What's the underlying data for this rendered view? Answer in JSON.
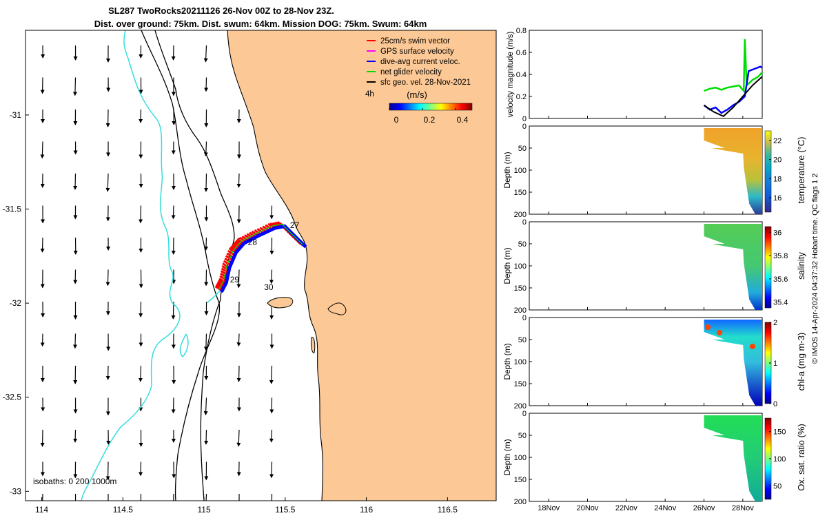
{
  "title": {
    "line1": "SL287 TwoRocks20211126 26-Nov 00Z to 28-Nov 23Z.",
    "line2": "Dist. over ground: 75km. Dist. swum: 64km. Mission DOG: 75km. Swum: 64km"
  },
  "footer": "© IMOS 14-Apr-2024 04:37:32 Hobart time. QC flags 1  2",
  "colors": {
    "land": "#fcc895",
    "swim_vector": "#ff0000",
    "gps_velocity": "#ff00ff",
    "dive_avg": "#0000ff",
    "net_glider": "#00dd00",
    "sfc_geo": "#000000",
    "isobath_0": "#000000",
    "isobath_200": "#33dddd",
    "isobath_1000": "#000000"
  },
  "map": {
    "x_ticks": [
      "114",
      "114.5",
      "115",
      "115.5",
      "116",
      "116.5"
    ],
    "y_ticks": [
      "-31",
      "-31.5",
      "-32",
      "-32.5",
      "-33"
    ],
    "xlim": [
      113.9,
      116.8
    ],
    "ylim": [
      -33.05,
      -30.55
    ],
    "legend": [
      {
        "label": "25cm/s swim vector",
        "color": "#ff0000"
      },
      {
        "label": "GPS surface velocity",
        "color": "#ff00ff"
      },
      {
        "label": "dive-avg current veloc.",
        "color": "#0000ff"
      },
      {
        "label": "net glider velocity",
        "color": "#00dd00"
      },
      {
        "label": "sfc geo. vel. 28-Nov-2021",
        "color": "#000000"
      }
    ],
    "colorbar": {
      "time_label": "4h",
      "unit_label": "(m/s)",
      "ticks": [
        "0",
        "0.2",
        "0.4"
      ],
      "range": [
        0,
        0.5
      ]
    },
    "isobath_label": "isobaths: 0   200  1000m",
    "day_labels": [
      {
        "text": "27",
        "lon": 115.53,
        "lat": -31.6
      },
      {
        "text": "28",
        "lon": 115.27,
        "lat": -31.69
      },
      {
        "text": "29",
        "lon": 115.16,
        "lat": -31.89
      },
      {
        "text": "30",
        "lon": 115.37,
        "lat": -31.93
      }
    ],
    "glider_track": [
      [
        115.61,
        -31.69
      ],
      [
        115.55,
        -31.64
      ],
      [
        115.48,
        -31.58
      ],
      [
        115.42,
        -31.59
      ],
      [
        115.32,
        -31.63
      ],
      [
        115.23,
        -31.67
      ],
      [
        115.18,
        -31.72
      ],
      [
        115.14,
        -31.8
      ],
      [
        115.12,
        -31.88
      ],
      [
        115.09,
        -31.93
      ]
    ]
  },
  "panels": {
    "velocity": {
      "ylabel": "velocity magnitude (m/s)",
      "yticks": [
        "0",
        "0.2",
        "0.4",
        "0.6",
        "0.8"
      ],
      "ylim": [
        0,
        0.8
      ],
      "xlim_days": [
        17,
        29
      ]
    },
    "sections": [
      {
        "cblabel": "temperature (°C)",
        "cbticks": [
          "16",
          "18",
          "20",
          "22"
        ],
        "cbrange": [
          14.5,
          23
        ],
        "ylabel": "Depth (m)",
        "yticks": [
          "0",
          "50",
          "100",
          "150",
          "200"
        ],
        "cmap": "parula"
      },
      {
        "cblabel": "salinity",
        "cbticks": [
          "35.4",
          "35.6",
          "35.8",
          "36"
        ],
        "cbrange": [
          35.35,
          36.05
        ],
        "ylabel": "Depth (m)",
        "yticks": [
          "0",
          "50",
          "100",
          "150",
          "200"
        ],
        "cmap": "jet"
      },
      {
        "cblabel": "chl-a (mg m-3)",
        "cbticks": [
          "0",
          "1",
          "2"
        ],
        "cbrange": [
          0,
          2
        ],
        "ylabel": "Depth (m)",
        "yticks": [
          "0",
          "50",
          "100",
          "150",
          "200"
        ],
        "cmap": "jet"
      },
      {
        "cblabel": "Ox. sat. ratio (%)",
        "cbticks": [
          "50",
          "100",
          "150"
        ],
        "cbrange": [
          25,
          175
        ],
        "ylabel": "Depth (m)",
        "yticks": [
          "0",
          "50",
          "100",
          "150",
          "200"
        ],
        "cmap": "jet"
      }
    ],
    "xticks": [
      "18Nov",
      "20Nov",
      "22Nov",
      "24Nov",
      "26Nov",
      "28Nov"
    ],
    "xtick_days": [
      18,
      20,
      22,
      24,
      26,
      28
    ]
  },
  "chart_data": [
    {
      "type": "line",
      "title": "velocity magnitude",
      "ylabel": "velocity magnitude (m/s)",
      "ylim": [
        0,
        0.8
      ],
      "x_units": "day of November 2021",
      "series": [
        {
          "name": "net glider velocity",
          "color": "#00dd00",
          "x": [
            26.0,
            26.3,
            26.6,
            26.9,
            27.2,
            27.5,
            27.8,
            28.05,
            28.1,
            28.2,
            28.5,
            28.8,
            29.0
          ],
          "y": [
            0.25,
            0.27,
            0.28,
            0.26,
            0.28,
            0.29,
            0.3,
            0.25,
            0.72,
            0.3,
            0.35,
            0.38,
            0.42
          ]
        },
        {
          "name": "dive-avg current veloc.",
          "color": "#0000ff",
          "x": [
            26.0,
            26.3,
            26.6,
            26.9,
            27.2,
            27.5,
            27.8,
            28.1,
            28.3,
            28.6,
            28.9,
            29.0
          ],
          "y": [
            0.12,
            0.08,
            0.1,
            0.05,
            0.08,
            0.12,
            0.15,
            0.2,
            0.43,
            0.45,
            0.47,
            0.46
          ]
        },
        {
          "name": "sfc geo. vel. 28-Nov-2021",
          "color": "#000000",
          "x": [
            26.0,
            26.5,
            27.0,
            27.5,
            28.0,
            28.5,
            29.0
          ],
          "y": [
            0.12,
            0.06,
            0.02,
            0.1,
            0.2,
            0.3,
            0.38
          ]
        }
      ]
    },
    {
      "type": "heatmap",
      "variable": "temperature (°C)",
      "x_range_days": [
        26,
        29
      ],
      "depth_range": [
        0,
        200
      ],
      "value_range": [
        14.5,
        23
      ],
      "surface_value": 21.5,
      "deep_value": 15
    },
    {
      "type": "heatmap",
      "variable": "salinity",
      "x_range_days": [
        26,
        29
      ],
      "depth_range": [
        0,
        200
      ],
      "value_range": [
        35.35,
        36.05
      ],
      "surface_value": 35.75,
      "deep_value": 35.45
    },
    {
      "type": "heatmap",
      "variable": "chl-a (mg m-3)",
      "x_range_days": [
        26,
        29
      ],
      "depth_range": [
        0,
        200
      ],
      "value_range": [
        0,
        2
      ],
      "surface_value": 0.7,
      "deep_value": 0.3
    },
    {
      "type": "heatmap",
      "variable": "Ox. sat. ratio (%)",
      "x_range_days": [
        26,
        29
      ],
      "depth_range": [
        0,
        200
      ],
      "value_range": [
        25,
        175
      ],
      "surface_value": 95,
      "deep_value": 80
    }
  ]
}
